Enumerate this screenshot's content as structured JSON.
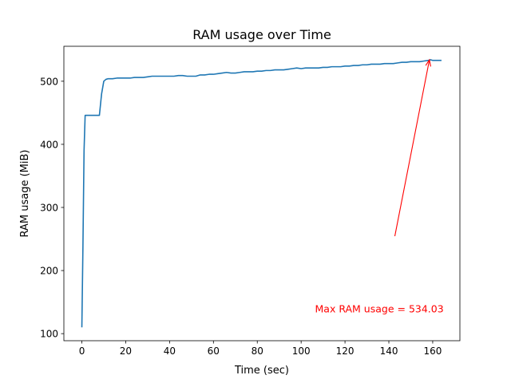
{
  "chart_data": {
    "type": "line",
    "title": "RAM usage over Time",
    "xlabel": "Time (sec)",
    "ylabel": "RAM usage (MiB)",
    "xlim": [
      -8.2,
      172.4
    ],
    "ylim": [
      88.8,
      555.4
    ],
    "xticks": [
      0,
      20,
      40,
      60,
      80,
      100,
      120,
      140,
      160
    ],
    "yticks": [
      100,
      200,
      300,
      400,
      500
    ],
    "grid": false,
    "legend": "none",
    "line_color": "#1f77b4",
    "series": [
      {
        "x": [
          0,
          0.5,
          1,
          1.5,
          2,
          4,
          6,
          8,
          9,
          10,
          11,
          12,
          14,
          16,
          18,
          20,
          22,
          24,
          26,
          28,
          30,
          32,
          34,
          36,
          38,
          40,
          42,
          44,
          46,
          48,
          50,
          52,
          54,
          56,
          58,
          60,
          62,
          64,
          66,
          68,
          70,
          72,
          74,
          76,
          78,
          80,
          82,
          84,
          86,
          88,
          90,
          92,
          94,
          96,
          98,
          100,
          102,
          104,
          106,
          108,
          110,
          112,
          114,
          116,
          118,
          120,
          122,
          124,
          126,
          128,
          130,
          132,
          134,
          136,
          138,
          140,
          142,
          144,
          146,
          148,
          150,
          152,
          154,
          156,
          158,
          159,
          160,
          162,
          164
        ],
        "y": [
          110,
          240,
          390,
          446,
          446,
          446,
          446,
          446,
          480,
          500,
          503,
          504,
          504,
          505,
          505,
          505,
          505,
          506,
          506,
          506,
          507,
          508,
          508,
          508,
          508,
          508,
          508,
          509,
          509,
          508,
          508,
          508,
          510,
          510,
          511,
          511,
          512,
          513,
          514,
          513,
          513,
          514,
          515,
          515,
          515,
          516,
          516,
          517,
          517,
          518,
          518,
          518,
          519,
          520,
          521,
          520,
          521,
          521,
          521,
          521,
          522,
          522,
          523,
          523,
          523,
          524,
          524,
          525,
          525,
          526,
          526,
          527,
          527,
          527,
          528,
          528,
          528,
          529,
          530,
          530,
          531,
          531,
          531,
          532,
          533,
          534.03,
          533,
          533,
          533
        ]
      }
    ],
    "annotation": {
      "text": "Max RAM usage = 534.03",
      "color": "#ff0000",
      "xy": [
        158.5,
        534.03
      ],
      "xytext": [
        108.5,
        233.5
      ]
    }
  }
}
